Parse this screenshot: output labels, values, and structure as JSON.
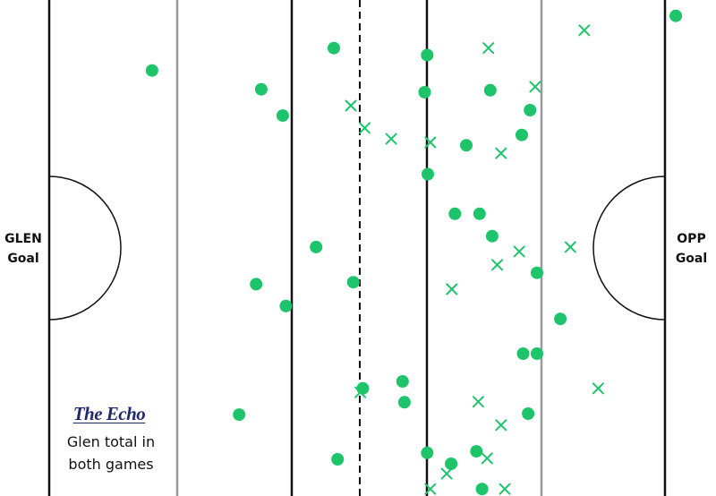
{
  "labels": {
    "left_goal": "GLEN\nGoal",
    "right_goal": "OPP\nGoal",
    "brand": "The Echo",
    "caption": "Glen total in\nboth games"
  },
  "colors": {
    "marker": "#1dc46a",
    "pitch_line": "#111111",
    "zone_line": "#999999"
  },
  "chart_data": {
    "type": "scatter",
    "title": "",
    "xlabel": "",
    "ylabel": "",
    "xlim": [
      0,
      100
    ],
    "ylim": [
      0,
      100
    ],
    "grid": false,
    "legend": "none",
    "series": [
      {
        "marker": "dot",
        "points": [
          {
            "x": 16.3,
            "y": 14.2
          },
          {
            "x": 33.6,
            "y": 18.0
          },
          {
            "x": 37.0,
            "y": 23.3
          },
          {
            "x": 45.1,
            "y": 9.7
          },
          {
            "x": 59.9,
            "y": 11.1
          },
          {
            "x": 59.5,
            "y": 18.6
          },
          {
            "x": 69.9,
            "y": 18.2
          },
          {
            "x": 76.2,
            "y": 22.2
          },
          {
            "x": 74.9,
            "y": 27.2
          },
          {
            "x": 66.1,
            "y": 29.3
          },
          {
            "x": 60.0,
            "y": 35.1
          },
          {
            "x": 64.3,
            "y": 43.1
          },
          {
            "x": 68.2,
            "y": 43.1
          },
          {
            "x": 70.2,
            "y": 47.6
          },
          {
            "x": 42.3,
            "y": 49.8
          },
          {
            "x": 77.3,
            "y": 55.0
          },
          {
            "x": 32.8,
            "y": 57.3
          },
          {
            "x": 48.2,
            "y": 56.9
          },
          {
            "x": 37.5,
            "y": 61.7
          },
          {
            "x": 81.0,
            "y": 64.3
          },
          {
            "x": 75.1,
            "y": 71.3
          },
          {
            "x": 77.3,
            "y": 71.3
          },
          {
            "x": 56.0,
            "y": 76.9
          },
          {
            "x": 49.7,
            "y": 78.3
          },
          {
            "x": 56.3,
            "y": 81.1
          },
          {
            "x": 30.1,
            "y": 83.6
          },
          {
            "x": 75.9,
            "y": 83.4
          },
          {
            "x": 59.9,
            "y": 91.3
          },
          {
            "x": 67.7,
            "y": 91.0
          },
          {
            "x": 63.7,
            "y": 93.5
          },
          {
            "x": 45.7,
            "y": 92.6
          },
          {
            "x": 68.6,
            "y": 98.6
          },
          {
            "x": 99.3,
            "y": 3.2
          }
        ]
      },
      {
        "marker": "cross",
        "points": [
          {
            "x": 69.6,
            "y": 9.7
          },
          {
            "x": 84.8,
            "y": 6.1
          },
          {
            "x": 77.0,
            "y": 17.5
          },
          {
            "x": 47.8,
            "y": 21.3
          },
          {
            "x": 50.0,
            "y": 25.8
          },
          {
            "x": 54.2,
            "y": 28.0
          },
          {
            "x": 60.4,
            "y": 28.7
          },
          {
            "x": 71.6,
            "y": 30.9
          },
          {
            "x": 74.5,
            "y": 50.7
          },
          {
            "x": 71.0,
            "y": 53.4
          },
          {
            "x": 82.6,
            "y": 49.8
          },
          {
            "x": 63.8,
            "y": 58.3
          },
          {
            "x": 87.0,
            "y": 78.3
          },
          {
            "x": 49.3,
            "y": 79.1
          },
          {
            "x": 68.0,
            "y": 81.0
          },
          {
            "x": 71.6,
            "y": 85.7
          },
          {
            "x": 69.4,
            "y": 92.4
          },
          {
            "x": 63.0,
            "y": 95.5
          },
          {
            "x": 60.4,
            "y": 98.6
          },
          {
            "x": 72.2,
            "y": 98.6
          }
        ]
      }
    ]
  }
}
